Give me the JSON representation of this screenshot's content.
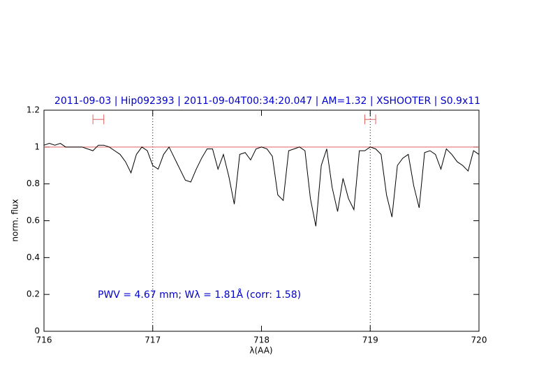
{
  "chart_data": {
    "type": "line",
    "title": "2011-09-03 | Hip092393 | 2011-09-04T00:34:20.047 | AM=1.32 | XSHOOTER | S0.9x11",
    "x_label": "λ(AA)",
    "y_label": "norm. flux",
    "annotation": "PWV = 4.67 mm; Wλ = 1.81Å (corr: 1.58)",
    "xlim": [
      716,
      720
    ],
    "ylim": [
      0,
      1.2
    ],
    "xticks": [
      716,
      717,
      718,
      719,
      720
    ],
    "yticks": [
      0,
      0.2,
      0.4,
      0.6,
      0.8,
      1,
      1.2
    ],
    "vlines": [
      717,
      719
    ],
    "hline": 1,
    "hline_color": "#e06060",
    "ranges": [
      [
        716.45,
        716.55
      ],
      [
        718.95,
        719.05
      ]
    ],
    "range_y": 1.15,
    "range_color": "#e06060",
    "series": [
      {
        "color": "#000000",
        "x": [
          716.0,
          716.05,
          716.1,
          716.15,
          716.2,
          716.25,
          716.3,
          716.35,
          716.4,
          716.45,
          716.5,
          716.55,
          716.6,
          716.65,
          716.7,
          716.75,
          716.8,
          716.85,
          716.9,
          716.95,
          717.0,
          717.05,
          717.1,
          717.15,
          717.2,
          717.25,
          717.3,
          717.35,
          717.4,
          717.45,
          717.5,
          717.55,
          717.6,
          717.65,
          717.7,
          717.75,
          717.8,
          717.85,
          717.9,
          717.95,
          718.0,
          718.05,
          718.1,
          718.15,
          718.2,
          718.25,
          718.3,
          718.35,
          718.4,
          718.45,
          718.5,
          718.55,
          718.6,
          718.65,
          718.7,
          718.75,
          718.8,
          718.85,
          718.9,
          718.95,
          719.0,
          719.05,
          719.1,
          719.15,
          719.2,
          719.25,
          719.3,
          719.35,
          719.4,
          719.45,
          719.5,
          719.55,
          719.6,
          719.65,
          719.7,
          719.75,
          719.8,
          719.85,
          719.9,
          719.95,
          720.0
        ],
        "values": [
          1.01,
          1.02,
          1.01,
          1.02,
          1.0,
          1.0,
          1.0,
          1.0,
          0.99,
          0.98,
          1.01,
          1.01,
          1.0,
          0.98,
          0.96,
          0.92,
          0.86,
          0.96,
          1.0,
          0.98,
          0.9,
          0.88,
          0.96,
          1.0,
          0.94,
          0.88,
          0.82,
          0.81,
          0.88,
          0.94,
          0.99,
          0.99,
          0.88,
          0.96,
          0.84,
          0.69,
          0.96,
          0.97,
          0.93,
          0.99,
          1.0,
          0.99,
          0.95,
          0.74,
          0.71,
          0.98,
          0.99,
          1.0,
          0.98,
          0.72,
          0.57,
          0.9,
          0.99,
          0.78,
          0.65,
          0.83,
          0.72,
          0.66,
          0.98,
          0.98,
          1.0,
          0.99,
          0.96,
          0.74,
          0.62,
          0.9,
          0.94,
          0.96,
          0.79,
          0.67,
          0.97,
          0.98,
          0.96,
          0.88,
          0.99,
          0.96,
          0.92,
          0.9,
          0.87,
          0.98,
          0.96
        ]
      }
    ]
  }
}
